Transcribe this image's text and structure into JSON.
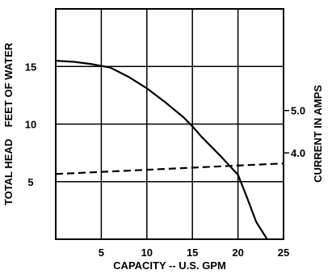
{
  "chart_data": {
    "type": "line",
    "xlabel": "CAPACITY -- U.S. GPM",
    "ylabel_left": "TOTAL HEAD    FEET OF WATER",
    "ylabel_right": "CURRENT IN AMPS",
    "xlim": [
      0,
      25
    ],
    "ylim_left": [
      0,
      20
    ],
    "ylim_right": [
      1.96,
      7.4
    ],
    "x_ticks": [
      5,
      10,
      15,
      20,
      25
    ],
    "x_tick_labels": [
      "5",
      "10",
      "15",
      "20",
      "25"
    ],
    "y_left_ticks": [
      5,
      10,
      15
    ],
    "y_left_tick_labels": [
      "5",
      "10",
      "15"
    ],
    "y_right_ticks": [
      4.0,
      5.0
    ],
    "y_right_tick_labels": [
      "4.0",
      "5.0"
    ],
    "grid": true,
    "series": [
      {
        "axis": "left",
        "style": "solid",
        "x": [
          0,
          2,
          4,
          6,
          8,
          10,
          12,
          14,
          15,
          16,
          18,
          20,
          21,
          22,
          23.2
        ],
        "y": [
          15.5,
          15.4,
          15.2,
          14.9,
          14.1,
          13.1,
          11.9,
          10.6,
          9.8,
          8.9,
          7.3,
          5.6,
          3.6,
          1.5,
          0
        ]
      },
      {
        "axis": "right",
        "style": "dashed",
        "x": [
          0,
          25
        ],
        "y": [
          3.5,
          3.75
        ]
      }
    ]
  }
}
